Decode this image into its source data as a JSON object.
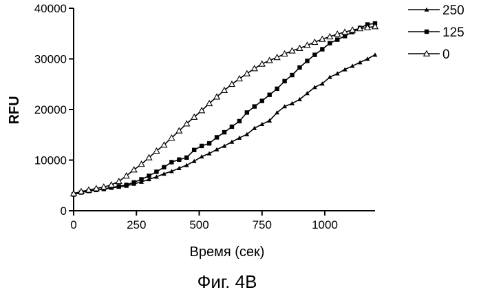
{
  "figure": {
    "caption": "Фиг. 4В"
  },
  "chart_data": {
    "type": "line",
    "xlabel": "Время (сек)",
    "ylabel": "RFU",
    "xlim": [
      0,
      1200
    ],
    "ylim": [
      0,
      40000
    ],
    "x_ticks": [
      0,
      250,
      500,
      750,
      1000
    ],
    "y_ticks": [
      0,
      10000,
      20000,
      30000,
      40000
    ],
    "legend_position": "top-right",
    "series": [
      {
        "name": "250",
        "marker": "filled-triangle",
        "x": [
          0,
          30,
          60,
          90,
          120,
          150,
          180,
          210,
          240,
          270,
          300,
          330,
          360,
          390,
          420,
          450,
          480,
          510,
          540,
          570,
          600,
          630,
          660,
          690,
          720,
          750,
          780,
          810,
          840,
          870,
          900,
          930,
          960,
          990,
          1020,
          1050,
          1080,
          1110,
          1140,
          1170,
          1200
        ],
        "values": [
          3300,
          3600,
          3900,
          4100,
          4300,
          4500,
          4700,
          4900,
          5300,
          5700,
          6200,
          6700,
          7300,
          7800,
          8400,
          9000,
          9800,
          10700,
          11300,
          12100,
          12800,
          13600,
          14400,
          15100,
          16300,
          17100,
          17800,
          19400,
          20600,
          21200,
          22000,
          23200,
          24400,
          25100,
          26400,
          27100,
          27900,
          28600,
          29300,
          30000,
          30800
        ]
      },
      {
        "name": "125",
        "marker": "filled-square",
        "x": [
          0,
          30,
          60,
          90,
          120,
          150,
          180,
          210,
          240,
          270,
          300,
          330,
          360,
          390,
          420,
          450,
          480,
          510,
          540,
          570,
          600,
          630,
          660,
          690,
          720,
          750,
          780,
          810,
          840,
          870,
          900,
          930,
          960,
          990,
          1020,
          1050,
          1080,
          1110,
          1140,
          1170,
          1200
        ],
        "values": [
          3200,
          3600,
          3900,
          4100,
          4300,
          4600,
          4800,
          5100,
          5600,
          6200,
          6900,
          7700,
          8600,
          9600,
          10100,
          10500,
          12000,
          12800,
          13300,
          14500,
          15500,
          16600,
          17700,
          19400,
          20600,
          21700,
          22900,
          24100,
          25600,
          26800,
          28300,
          29600,
          30800,
          31900,
          33100,
          33800,
          34500,
          35300,
          36100,
          36800,
          37000
        ]
      },
      {
        "name": "0",
        "marker": "open-triangle",
        "x": [
          0,
          30,
          60,
          90,
          120,
          150,
          180,
          210,
          240,
          270,
          300,
          330,
          360,
          390,
          420,
          450,
          480,
          510,
          540,
          570,
          600,
          630,
          660,
          690,
          720,
          750,
          780,
          810,
          840,
          870,
          900,
          930,
          960,
          990,
          1020,
          1050,
          1080,
          1110,
          1140,
          1170,
          1200
        ],
        "values": [
          3400,
          3800,
          4100,
          4400,
          4700,
          5100,
          5800,
          6900,
          8100,
          9200,
          10500,
          11800,
          13000,
          14400,
          15800,
          17200,
          18500,
          19800,
          21200,
          22500,
          23800,
          25000,
          26100,
          27100,
          28100,
          29000,
          29700,
          30300,
          31000,
          31600,
          32100,
          32700,
          33300,
          33900,
          34400,
          34900,
          35300,
          35700,
          36000,
          36200,
          36400
        ]
      }
    ]
  }
}
